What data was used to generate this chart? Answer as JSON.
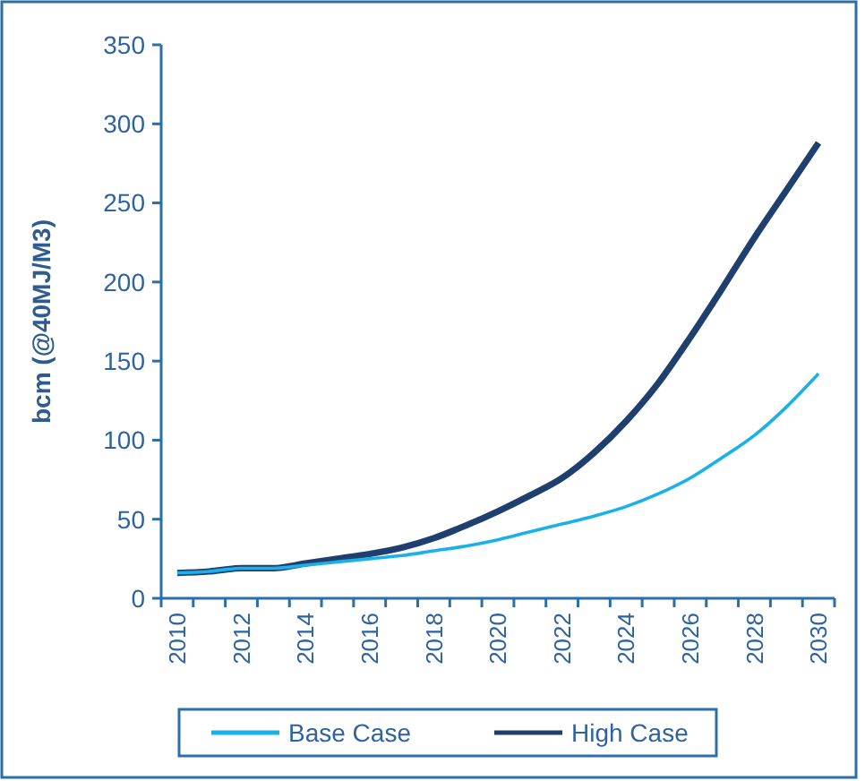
{
  "chart_data": {
    "type": "line",
    "ylabel": "bcm (@40MJ/M3)",
    "categories": [
      "2010",
      null,
      "2012",
      null,
      "2014",
      null,
      "2016",
      null,
      "2018",
      null,
      "2020",
      null,
      "2022",
      null,
      "2024",
      null,
      "2026",
      null,
      "2028",
      null,
      "2030"
    ],
    "series": [
      {
        "name": "Base Case",
        "color": "#1ab0e8",
        "values": [
          16,
          17,
          19,
          19,
          21,
          23,
          25,
          27,
          30,
          33,
          37,
          42,
          47,
          52,
          58,
          66,
          76,
          89,
          103,
          121,
          142
        ]
      },
      {
        "name": "High Case",
        "color": "#1f3f6e",
        "values": [
          16,
          17,
          19,
          19,
          22,
          25,
          28,
          32,
          38,
          46,
          55,
          65,
          76,
          92,
          112,
          136,
          165,
          196,
          228,
          258,
          288
        ]
      }
    ],
    "ylim": [
      0,
      350
    ],
    "yticks": [
      0,
      50,
      100,
      150,
      200,
      250,
      300,
      350
    ],
    "grid": false,
    "legend": "bottom",
    "marker": "none",
    "line_style": "solid"
  }
}
